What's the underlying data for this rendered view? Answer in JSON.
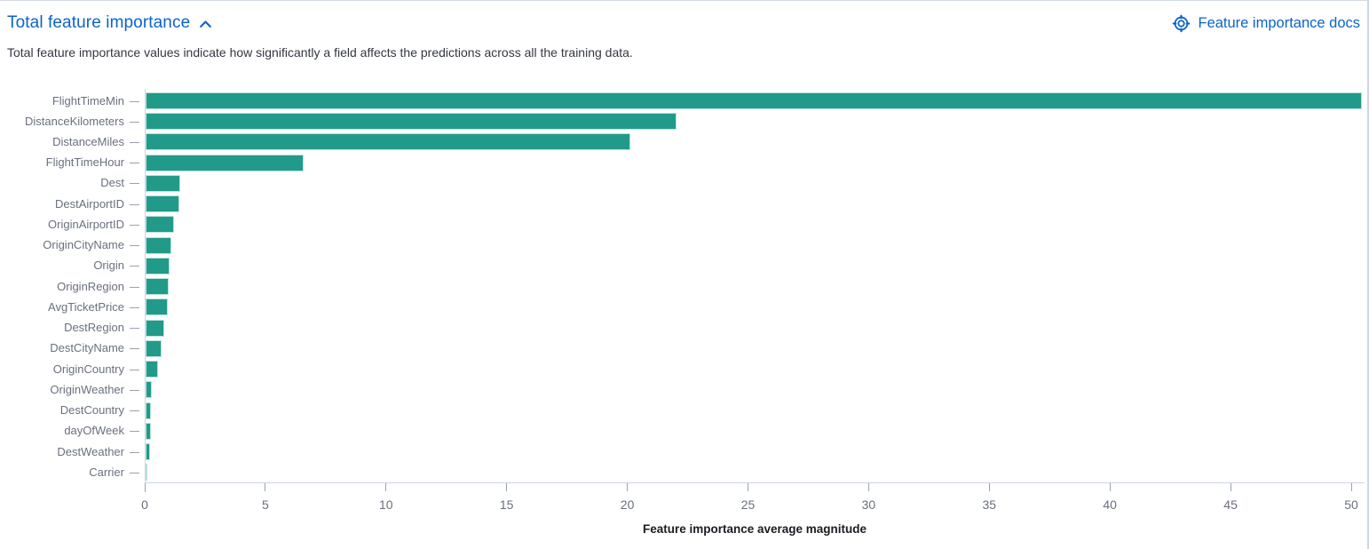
{
  "header": {
    "title": "Total feature importance",
    "docs_link_label": "Feature importance docs"
  },
  "description": "Total feature importance values indicate how significantly a field affects the predictions across all the training data.",
  "icons": {
    "collapse": "chevron-up-icon",
    "docs": "lifebuoy-help-icon"
  },
  "colors": {
    "link_blue": "#0b64c8",
    "bar_teal": "#219a8a",
    "axis_label_gray": "#69707d",
    "text_dark": "#343741",
    "axis_line": "#cdd4e0",
    "tick_mark": "#98a2b3",
    "panel_border": "#d3dae6"
  },
  "chart_data": {
    "type": "bar",
    "orientation": "horizontal",
    "title": "",
    "xlabel": "Feature importance average magnitude",
    "ylabel": "",
    "categories": [
      "FlightTimeMin",
      "DistanceKilometers",
      "DistanceMiles",
      "FlightTimeHour",
      "Dest",
      "DestAirportID",
      "OriginAirportID",
      "OriginCityName",
      "Origin",
      "OriginRegion",
      "AvgTicketPrice",
      "DestRegion",
      "DestCityName",
      "OriginCountry",
      "OriginWeather",
      "DestCountry",
      "dayOfWeek",
      "DestWeather",
      "Carrier"
    ],
    "values": [
      50.4,
      22.0,
      20.1,
      6.55,
      1.43,
      1.4,
      1.18,
      1.05,
      1.0,
      0.96,
      0.92,
      0.79,
      0.66,
      0.5,
      0.26,
      0.23,
      0.21,
      0.18,
      0.07
    ],
    "x_ticks": [
      0,
      5,
      10,
      15,
      20,
      25,
      30,
      35,
      40,
      45,
      50
    ],
    "xlim": [
      0,
      50.6
    ],
    "grid": false,
    "legend": false,
    "bar_color": "#219a8a"
  }
}
